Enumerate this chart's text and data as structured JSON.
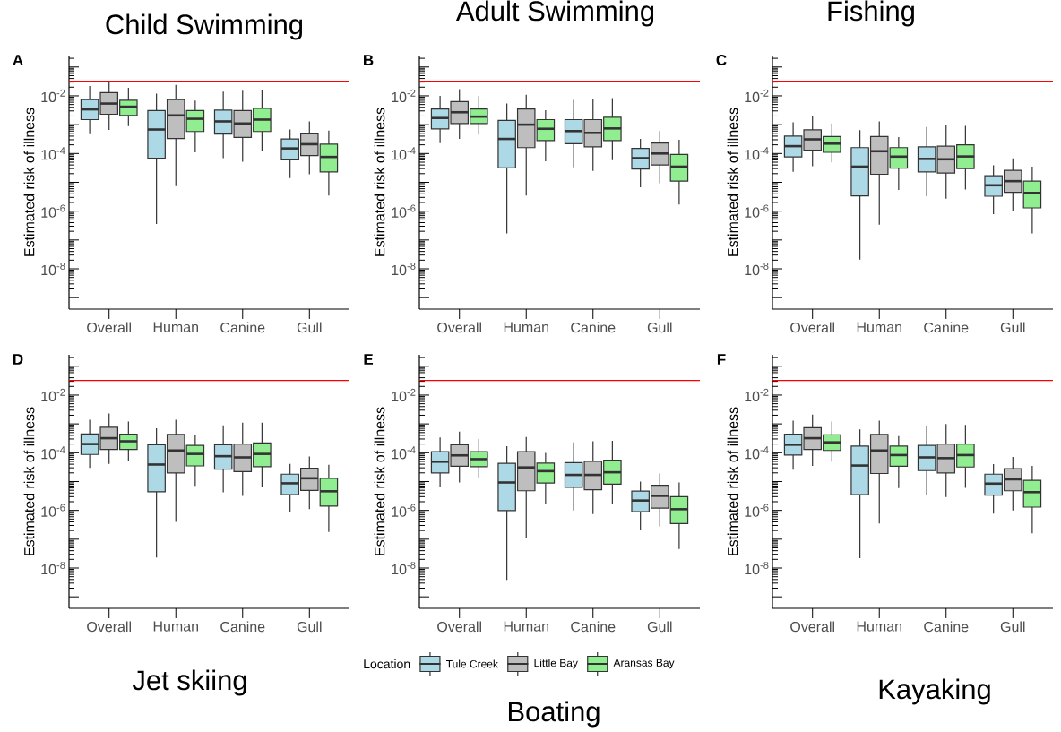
{
  "chart_data": [
    {
      "type": "box",
      "title": "Child Swimming",
      "annotations": [
        "A"
      ],
      "ylabel": "Estimated risk of illness",
      "categories": [
        "Overall",
        "Human",
        "Canine",
        "Gull"
      ],
      "log": true,
      "ylim": [
        4e-10,
        0.25
      ],
      "yticks": [
        {
          "value": 1e-09,
          "label": null
        },
        {
          "value": 1e-08,
          "label": "10$^{-8}$"
        },
        {
          "value": 1e-07,
          "label": null
        },
        {
          "value": 1e-06,
          "label": "10$^{-6}$"
        },
        {
          "value": 1e-05,
          "label": null
        },
        {
          "value": 0.0001,
          "label": "10$^{-4}$"
        },
        {
          "value": 0.001,
          "label": null
        },
        {
          "value": 0.01,
          "label": "10$^{-2}$"
        },
        {
          "value": 0.1,
          "label": null
        }
      ],
      "ref_lines": [
        {
          "axis": "y",
          "value": 0.032,
          "color": "#ff0000"
        }
      ],
      "series": [
        {
          "color": "#add8e6",
          "boxes": [
            {
              "low": 0.00047,
              "q1": 0.0015,
              "median": 0.0034,
              "q3": 0.0074,
              "high": 0.022
            },
            {
              "low": 3.6e-07,
              "q1": 6.8e-05,
              "median": 0.00068,
              "q3": 0.0031,
              "high": 0.012
            },
            {
              "low": 6.9e-05,
              "q1": 0.00047,
              "median": 0.0013,
              "q3": 0.0032,
              "high": 0.014
            },
            {
              "low": 1.4e-05,
              "q1": 6e-05,
              "median": 0.00015,
              "q3": 0.00032,
              "high": 0.00068
            }
          ]
        },
        {
          "color": "#bebebe",
          "boxes": [
            {
              "low": 0.00066,
              "q1": 0.0023,
              "median": 0.0054,
              "q3": 0.013,
              "high": 0.032
            },
            {
              "low": 7.4e-06,
              "q1": 0.00033,
              "median": 0.0021,
              "q3": 0.0074,
              "high": 0.024
            },
            {
              "low": 5.2e-05,
              "q1": 0.00036,
              "median": 0.0011,
              "q3": 0.0031,
              "high": 0.015
            },
            {
              "low": 1.9e-05,
              "q1": 8.5e-05,
              "median": 0.00021,
              "q3": 0.00048,
              "high": 0.0013
            }
          ]
        },
        {
          "color": "#90ee90",
          "boxes": [
            {
              "low": 0.00089,
              "q1": 0.0021,
              "median": 0.0042,
              "q3": 0.007,
              "high": 0.019
            },
            {
              "low": 0.00011,
              "q1": 0.00058,
              "median": 0.0016,
              "q3": 0.0031,
              "high": 0.0069
            },
            {
              "low": 0.00012,
              "q1": 0.00058,
              "median": 0.0015,
              "q3": 0.0037,
              "high": 0.016
            },
            {
              "low": 3.5e-06,
              "q1": 2.3e-05,
              "median": 7.6e-05,
              "q3": 0.00021,
              "high": 0.00062
            }
          ]
        }
      ]
    },
    {
      "type": "box",
      "title": "Adult Swimming",
      "annotations": [
        "B"
      ],
      "ylabel": "Estimated risk of illness",
      "categories": [
        "Overall",
        "Human",
        "Canine",
        "Gull"
      ],
      "log": true,
      "ylim": [
        4e-10,
        0.25
      ],
      "yticks": [
        {
          "value": 1e-09,
          "label": null
        },
        {
          "value": 1e-08,
          "label": "10$^{-8}$"
        },
        {
          "value": 1e-07,
          "label": null
        },
        {
          "value": 1e-06,
          "label": "10$^{-6}$"
        },
        {
          "value": 1e-05,
          "label": null
        },
        {
          "value": 0.0001,
          "label": "10$^{-4}$"
        },
        {
          "value": 0.001,
          "label": null
        },
        {
          "value": 0.01,
          "label": "10$^{-2}$"
        },
        {
          "value": 0.1,
          "label": null
        }
      ],
      "ref_lines": [
        {
          "axis": "y",
          "value": 0.032,
          "color": "#ff0000"
        }
      ],
      "series": [
        {
          "color": "#add8e6",
          "boxes": [
            {
              "low": 0.00023,
              "q1": 0.00071,
              "median": 0.0017,
              "q3": 0.0035,
              "high": 0.01
            },
            {
              "low": 1.7e-07,
              "q1": 3.2e-05,
              "median": 0.00032,
              "q3": 0.0014,
              "high": 0.0054
            },
            {
              "low": 3.3e-05,
              "q1": 0.00022,
              "median": 0.0006,
              "q3": 0.0015,
              "high": 0.0072
            },
            {
              "low": 6.8e-06,
              "q1": 2.9e-05,
              "median": 6.9e-05,
              "q3": 0.00015,
              "high": 0.00032
            }
          ]
        },
        {
          "color": "#bebebe",
          "boxes": [
            {
              "low": 0.00032,
              "q1": 0.0011,
              "median": 0.0027,
              "q3": 0.0063,
              "high": 0.017
            },
            {
              "low": 3.5e-06,
              "q1": 0.00016,
              "median": 0.001,
              "q3": 0.0035,
              "high": 0.011
            },
            {
              "low": 2.5e-05,
              "q1": 0.00017,
              "median": 0.00052,
              "q3": 0.0015,
              "high": 0.0079
            },
            {
              "low": 9.3e-06,
              "q1": 4e-05,
              "median": 0.0001,
              "q3": 0.00023,
              "high": 0.0006
            }
          ]
        },
        {
          "color": "#90ee90",
          "boxes": [
            {
              "low": 0.00045,
              "q1": 0.0011,
              "median": 0.0019,
              "q3": 0.0035,
              "high": 0.0098
            },
            {
              "low": 5.4e-05,
              "q1": 0.00028,
              "median": 0.00072,
              "q3": 0.0015,
              "high": 0.0032
            },
            {
              "low": 5.9e-05,
              "q1": 0.00028,
              "median": 0.00074,
              "q3": 0.0018,
              "high": 0.0083
            },
            {
              "low": 1.7e-06,
              "q1": 1.1e-05,
              "median": 3.5e-05,
              "q3": 9.3e-05,
              "high": 0.0003
            }
          ]
        }
      ]
    },
    {
      "type": "box",
      "title": "Fishing",
      "annotations": [
        "C"
      ],
      "ylabel": "Estimated risk of illness",
      "categories": [
        "Overall",
        "Human",
        "Canine",
        "Gull"
      ],
      "log": true,
      "ylim": [
        4e-10,
        0.25
      ],
      "yticks": [
        {
          "value": 1e-09,
          "label": null
        },
        {
          "value": 1e-08,
          "label": "10$^{-8}$"
        },
        {
          "value": 1e-07,
          "label": null
        },
        {
          "value": 1e-06,
          "label": "10$^{-6}$"
        },
        {
          "value": 1e-05,
          "label": null
        },
        {
          "value": 0.0001,
          "label": "10$^{-4}$"
        },
        {
          "value": 0.001,
          "label": null
        },
        {
          "value": 0.01,
          "label": "10$^{-2}$"
        },
        {
          "value": 0.1,
          "label": null
        }
      ],
      "ref_lines": [
        {
          "axis": "y",
          "value": 0.032,
          "color": "#ff0000"
        }
      ],
      "series": [
        {
          "color": "#add8e6",
          "boxes": [
            {
              "low": 2.3e-05,
              "q1": 7.6e-05,
              "median": 0.00018,
              "q3": 0.0004,
              "high": 0.0012
            },
            {
              "low": 2.1e-08,
              "q1": 3.4e-06,
              "median": 3.5e-05,
              "q3": 0.00016,
              "high": 0.00065
            },
            {
              "low": 3.3e-06,
              "q1": 2.3e-05,
              "median": 6.5e-05,
              "q3": 0.00017,
              "high": 0.00083
            },
            {
              "low": 7.9e-07,
              "q1": 3.3e-06,
              "median": 7.9e-06,
              "q3": 1.7e-05,
              "high": 3.9e-05
            }
          ]
        },
        {
          "color": "#bebebe",
          "boxes": [
            {
              "low": 3.6e-05,
              "q1": 0.00013,
              "median": 0.00031,
              "q3": 0.00066,
              "high": 0.002
            },
            {
              "low": 3.4e-07,
              "q1": 1.9e-05,
              "median": 0.00012,
              "q3": 0.00039,
              "high": 0.0013
            },
            {
              "low": 2.7e-06,
              "q1": 2.1e-05,
              "median": 6.3e-05,
              "q3": 0.00018,
              "high": 0.001
            },
            {
              "low": 1e-06,
              "q1": 4.5e-06,
              "median": 1.1e-05,
              "q3": 2.6e-05,
              "high": 6.8e-05
            }
          ]
        },
        {
          "color": "#90ee90",
          "boxes": [
            {
              "low": 4.9e-05,
              "q1": 0.00011,
              "median": 0.00022,
              "q3": 0.00039,
              "high": 0.0011
            },
            {
              "low": 5.4e-06,
              "q1": 3.1e-05,
              "median": 7.8e-05,
              "q3": 0.00016,
              "high": 0.00037
            },
            {
              "low": 5.6e-06,
              "q1": 3e-05,
              "median": 7.9e-05,
              "q3": 0.0002,
              "high": 0.00091
            },
            {
              "low": 1.7e-07,
              "q1": 1.3e-06,
              "median": 4.3e-06,
              "q3": 1.1e-05,
              "high": 3.5e-05
            }
          ]
        }
      ]
    },
    {
      "type": "box",
      "title": "Jet skiing",
      "annotations": [
        "D"
      ],
      "ylabel": "Estimated risk of illness",
      "categories": [
        "Overall",
        "Human",
        "Canine",
        "Gull"
      ],
      "log": true,
      "ylim": [
        4e-10,
        0.25
      ],
      "yticks": [
        {
          "value": 1e-09,
          "label": null
        },
        {
          "value": 1e-08,
          "label": "10$^{-8}$"
        },
        {
          "value": 1e-07,
          "label": null
        },
        {
          "value": 1e-06,
          "label": "10$^{-6}$"
        },
        {
          "value": 1e-05,
          "label": null
        },
        {
          "value": 0.0001,
          "label": "10$^{-4}$"
        },
        {
          "value": 0.001,
          "label": null
        },
        {
          "value": 0.01,
          "label": "10$^{-2}$"
        },
        {
          "value": 0.1,
          "label": null
        }
      ],
      "ref_lines": [
        {
          "axis": "y",
          "value": 0.032,
          "color": "#ff0000"
        }
      ],
      "series": [
        {
          "color": "#add8e6",
          "boxes": [
            {
              "low": 3e-05,
              "q1": 8.7e-05,
              "median": 0.0002,
              "q3": 0.00045,
              "high": 0.0014
            },
            {
              "low": 2.3e-08,
              "q1": 4.4e-06,
              "median": 3.9e-05,
              "q3": 0.00019,
              "high": 0.00071
            },
            {
              "low": 4.2e-06,
              "q1": 2.7e-05,
              "median": 7.6e-05,
              "q3": 0.00019,
              "high": 0.00089
            },
            {
              "low": 8.5e-07,
              "q1": 3.5e-06,
              "median": 8.7e-06,
              "q3": 1.8e-05,
              "high": 4.1e-05
            }
          ]
        },
        {
          "color": "#bebebe",
          "boxes": [
            {
              "low": 4.1e-05,
              "q1": 0.00013,
              "median": 0.00032,
              "q3": 0.00076,
              "high": 0.0023
            },
            {
              "low": 4e-07,
              "q1": 2e-05,
              "median": 0.00012,
              "q3": 0.00043,
              "high": 0.0014
            },
            {
              "low": 3.2e-06,
              "q1": 2.2e-05,
              "median": 6.9e-05,
              "q3": 0.0002,
              "high": 0.0011
            },
            {
              "low": 1.1e-06,
              "q1": 4.9e-06,
              "median": 1.3e-05,
              "q3": 2.9e-05,
              "high": 7.4e-05
            }
          ]
        },
        {
          "color": "#90ee90",
          "boxes": [
            {
              "low": 5.1e-05,
              "q1": 0.00013,
              "median": 0.00025,
              "q3": 0.00044,
              "high": 0.0012
            },
            {
              "low": 7.1e-06,
              "q1": 3.5e-05,
              "median": 9.1e-05,
              "q3": 0.00018,
              "high": 0.00042
            },
            {
              "low": 6.3e-06,
              "q1": 3.3e-05,
              "median": 9.1e-05,
              "q3": 0.00022,
              "high": 0.0011
            },
            {
              "low": 1.8e-07,
              "q1": 1.4e-06,
              "median": 4.6e-06,
              "q3": 1.3e-05,
              "high": 3.8e-05
            }
          ]
        }
      ]
    },
    {
      "type": "box",
      "title": "Boating",
      "annotations": [
        "E"
      ],
      "ylabel": "Estimated risk of illness",
      "categories": [
        "Overall",
        "Human",
        "Canine",
        "Gull"
      ],
      "log": true,
      "ylim": [
        4e-10,
        0.25
      ],
      "yticks": [
        {
          "value": 1e-09,
          "label": null
        },
        {
          "value": 1e-08,
          "label": "10$^{-8}$"
        },
        {
          "value": 1e-07,
          "label": null
        },
        {
          "value": 1e-06,
          "label": "10$^{-6}$"
        },
        {
          "value": 1e-05,
          "label": null
        },
        {
          "value": 0.0001,
          "label": "10$^{-4}$"
        },
        {
          "value": 0.001,
          "label": null
        },
        {
          "value": 0.01,
          "label": "10$^{-2}$"
        },
        {
          "value": 0.1,
          "label": null
        }
      ],
      "ref_lines": [
        {
          "axis": "y",
          "value": 0.032,
          "color": "#ff0000"
        }
      ],
      "legend": "bottom",
      "legend_title": "Location",
      "series": [
        {
          "name": "Tule Creek",
          "color": "#add8e6",
          "boxes": [
            {
              "low": 6.5e-06,
              "q1": 2e-05,
              "median": 4.9e-05,
              "q3": 0.00011,
              "high": 0.00034
            },
            {
              "low": 3.9e-09,
              "q1": 9.8e-07,
              "median": 9.3e-06,
              "q3": 4.3e-05,
              "high": 0.00017
            },
            {
              "low": 1e-06,
              "q1": 6.3e-06,
              "median": 1.7e-05,
              "q3": 4.5e-05,
              "high": 0.00023
            },
            {
              "low": 2.1e-07,
              "q1": 9.1e-07,
              "median": 2.2e-06,
              "q3": 4.7e-06,
              "high": 1e-05
            }
          ]
        },
        {
          "name": "Little Bay",
          "color": "#bebebe",
          "boxes": [
            {
              "low": 9.3e-06,
              "q1": 3.4e-05,
              "median": 8.1e-05,
              "q3": 0.00019,
              "high": 0.00054
            },
            {
              "low": 1.1e-07,
              "q1": 4.8e-06,
              "median": 3.1e-05,
              "q3": 0.00011,
              "high": 0.00035
            },
            {
              "low": 7.4e-07,
              "q1": 5.2e-06,
              "median": 1.7e-05,
              "q3": 5e-05,
              "high": 0.00025
            },
            {
              "low": 2.8e-07,
              "q1": 1.2e-06,
              "median": 3.2e-06,
              "q3": 7.4e-06,
              "high": 1.9e-05
            }
          ]
        },
        {
          "name": "Aransas Bay",
          "color": "#90ee90",
          "boxes": [
            {
              "low": 1.3e-05,
              "q1": 3.3e-05,
              "median": 6e-05,
              "q3": 0.00011,
              "high": 0.0003
            },
            {
              "low": 1.6e-06,
              "q1": 8.9e-06,
              "median": 2.3e-05,
              "q3": 4.4e-05,
              "high": 9.8e-05
            },
            {
              "low": 1.7e-06,
              "q1": 8.1e-06,
              "median": 2.1e-05,
              "q3": 5.5e-05,
              "high": 0.00026
            },
            {
              "low": 4.6e-08,
              "q1": 3.5e-07,
              "median": 1.1e-06,
              "q3": 3e-06,
              "high": 9.3e-06
            }
          ]
        }
      ]
    },
    {
      "type": "box",
      "title": "Kayaking",
      "annotations": [
        "F"
      ],
      "ylabel": "Estimated risk of illness",
      "categories": [
        "Overall",
        "Human",
        "Canine",
        "Gull"
      ],
      "log": true,
      "ylim": [
        4e-10,
        0.25
      ],
      "yticks": [
        {
          "value": 1e-09,
          "label": null
        },
        {
          "value": 1e-08,
          "label": "10$^{-8}$"
        },
        {
          "value": 1e-07,
          "label": null
        },
        {
          "value": 1e-06,
          "label": "10$^{-6}$"
        },
        {
          "value": 1e-05,
          "label": null
        },
        {
          "value": 0.0001,
          "label": "10$^{-4}$"
        },
        {
          "value": 0.001,
          "label": null
        },
        {
          "value": 0.01,
          "label": "10$^{-2}$"
        },
        {
          "value": 0.1,
          "label": null
        }
      ],
      "ref_lines": [
        {
          "axis": "y",
          "value": 0.032,
          "color": "#ff0000"
        }
      ],
      "series": [
        {
          "color": "#add8e6",
          "boxes": [
            {
              "low": 2.6e-05,
              "q1": 8.3e-05,
              "median": 0.00019,
              "q3": 0.00044,
              "high": 0.0013
            },
            {
              "low": 2.2e-08,
              "q1": 3.5e-06,
              "median": 3.6e-05,
              "q3": 0.00017,
              "high": 0.00065
            },
            {
              "low": 3.5e-06,
              "q1": 2.4e-05,
              "median": 6.9e-05,
              "q3": 0.00018,
              "high": 0.00087
            },
            {
              "low": 7.8e-07,
              "q1": 3.4e-06,
              "median": 8.5e-06,
              "q3": 1.8e-05,
              "high": 4e-05
            }
          ]
        },
        {
          "color": "#bebebe",
          "boxes": [
            {
              "low": 3.5e-05,
              "q1": 0.00013,
              "median": 0.00032,
              "q3": 0.00074,
              "high": 0.0021
            },
            {
              "low": 3.5e-07,
              "q1": 1.9e-05,
              "median": 0.00012,
              "q3": 0.00043,
              "high": 0.0013
            },
            {
              "low": 2.9e-06,
              "q1": 2e-05,
              "median": 6.5e-05,
              "q3": 0.0002,
              "high": 0.001
            },
            {
              "low": 1e-06,
              "q1": 4.8e-06,
              "median": 1.2e-05,
              "q3": 2.8e-05,
              "high": 7.2e-05
            }
          ]
        },
        {
          "color": "#90ee90",
          "boxes": [
            {
              "low": 4.9e-05,
              "q1": 0.00012,
              "median": 0.00023,
              "q3": 0.00042,
              "high": 0.0012
            },
            {
              "low": 5.9e-06,
              "q1": 3.4e-05,
              "median": 8.3e-05,
              "q3": 0.00017,
              "high": 0.00038
            },
            {
              "low": 6e-06,
              "q1": 3.2e-05,
              "median": 8.3e-05,
              "q3": 0.0002,
              "high": 0.00093
            },
            {
              "low": 1.6e-07,
              "q1": 1.3e-06,
              "median": 4.3e-06,
              "q3": 1.1e-05,
              "high": 3.5e-05
            }
          ]
        }
      ]
    }
  ]
}
